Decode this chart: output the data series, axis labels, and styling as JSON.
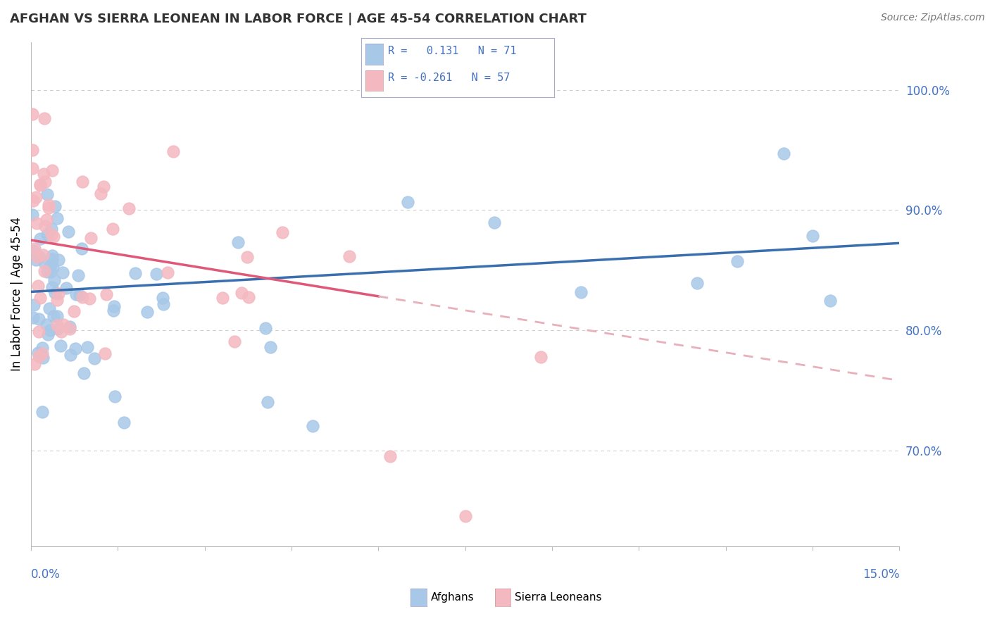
{
  "title": "AFGHAN VS SIERRA LEONEAN IN LABOR FORCE | AGE 45-54 CORRELATION CHART",
  "source": "Source: ZipAtlas.com",
  "ylabel": "In Labor Force | Age 45-54",
  "xlim": [
    0.0,
    15.0
  ],
  "ylim": [
    62.0,
    104.0
  ],
  "ytick_vals": [
    70.0,
    80.0,
    90.0,
    100.0
  ],
  "ytick_labels": [
    "70.0%",
    "80.0%",
    "90.0%",
    "100.0%"
  ],
  "afghan_color": "#a8c8e8",
  "sierra_color": "#f4b8c0",
  "afghan_line_color": "#3a6faf",
  "sierra_line_color": "#e05878",
  "sierra_dash_color": "#e8b0bb",
  "background_color": "#ffffff",
  "grid_color": "#cccccc",
  "afghan_line_intercept": 83.2,
  "afghan_line_slope": 0.27,
  "sierra_line_intercept": 87.5,
  "sierra_line_slope": -0.78,
  "sierra_solid_end": 6.0,
  "text_color": "#333333",
  "axis_label_color": "#4472c4",
  "legend_box_color": "#f0f0f8"
}
